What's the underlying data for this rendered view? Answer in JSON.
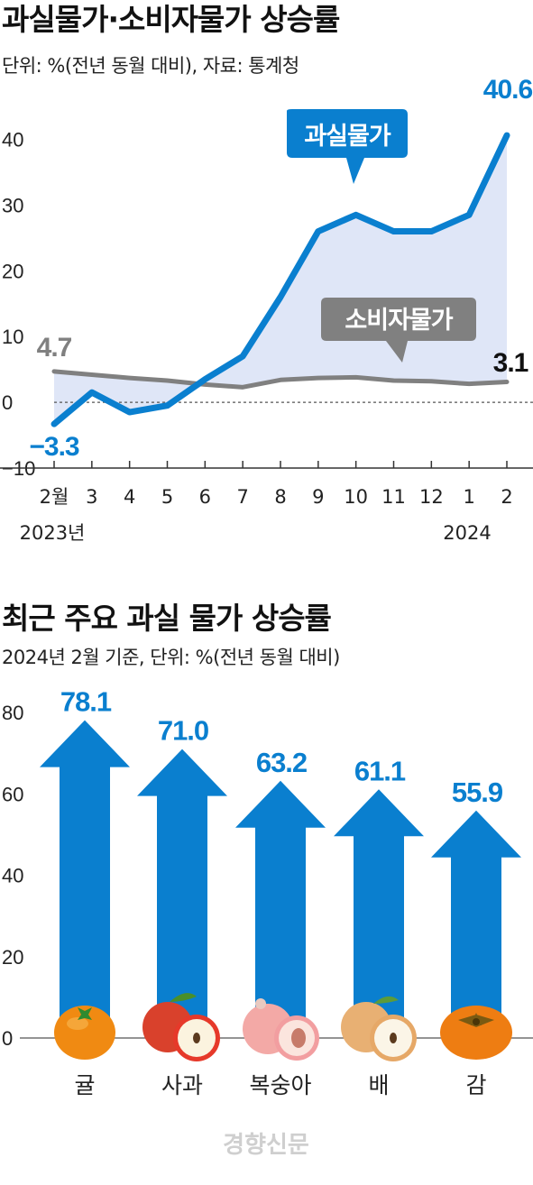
{
  "colors": {
    "fruit_line": "#0a7fcf",
    "cpi_line": "#808080",
    "area_fill": "#dfe6f7",
    "bar": "#0a7fcf",
    "label_dark": "#111111"
  },
  "chart1": {
    "title": "과실물가·소비자물가 상승률",
    "subtitle": "단위: %(전년 동월 대비), 자료: 통계청",
    "callout_fruit": "과실물가",
    "callout_cpi": "소비자물가",
    "year_start": "2023년",
    "year_end": "2024",
    "label_fruit_first": "−3.3",
    "label_fruit_last": "40.6",
    "label_cpi_first": "4.7",
    "label_cpi_last": "3.1"
  },
  "chart2": {
    "title": "최근 주요 과실 물가 상승률",
    "subtitle": "2024년 2월 기준, 단위: %(전년 동월 대비)"
  },
  "watermark": "경향신문",
  "chart_data": [
    {
      "type": "line",
      "title": "과실물가·소비자물가 상승률",
      "x": [
        "2월",
        "3",
        "4",
        "5",
        "6",
        "7",
        "8",
        "9",
        "10",
        "11",
        "12",
        "1",
        "2"
      ],
      "series": [
        {
          "name": "과실물가",
          "values": [
            -3.3,
            1.5,
            -1.5,
            -0.5,
            3.5,
            7.0,
            16.0,
            26.0,
            28.5,
            26.0,
            26.0,
            28.5,
            40.6
          ]
        },
        {
          "name": "소비자물가",
          "values": [
            4.7,
            4.2,
            3.7,
            3.3,
            2.7,
            2.3,
            3.4,
            3.7,
            3.8,
            3.3,
            3.2,
            2.8,
            3.1
          ]
        }
      ],
      "ylim": [
        -10,
        45
      ],
      "yticks": [
        -10,
        0,
        10,
        20,
        30,
        40
      ],
      "ytick_labels": [
        "−10",
        "0",
        "10",
        "20",
        "30",
        "40"
      ],
      "grid": false
    },
    {
      "type": "bar",
      "title": "최근 주요 과실 물가 상승률",
      "categories": [
        "귤",
        "사과",
        "복숭아",
        "배",
        "감"
      ],
      "values": [
        78.1,
        71.0,
        63.2,
        61.1,
        55.9
      ],
      "value_labels": [
        "78.1",
        "71.0",
        "63.2",
        "61.1",
        "55.9"
      ],
      "ylim": [
        0,
        80
      ],
      "yticks": [
        0,
        20,
        40,
        60,
        80
      ],
      "ytick_labels": [
        "0",
        "20",
        "40",
        "60",
        "80"
      ],
      "icons": [
        "tangerine-icon",
        "apple-icon",
        "peach-icon",
        "pear-icon",
        "persimmon-icon"
      ]
    }
  ]
}
